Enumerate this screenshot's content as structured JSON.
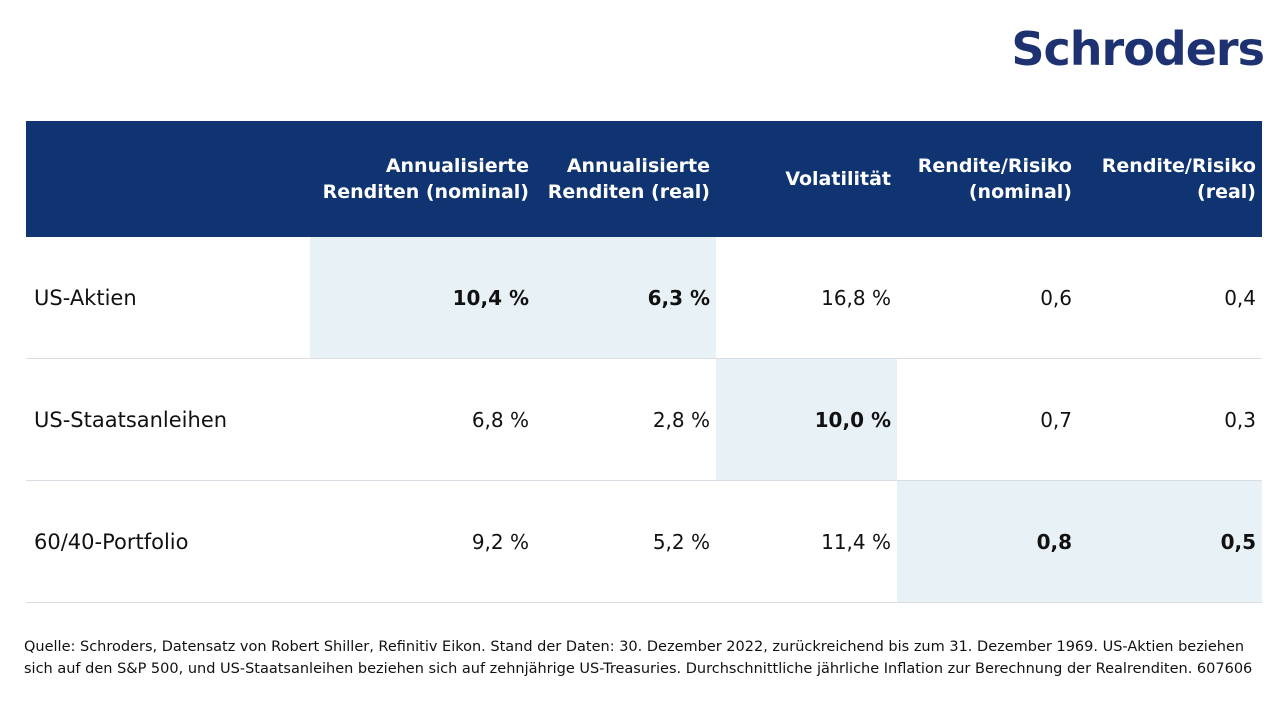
{
  "brand": {
    "logo_text": "Schroders",
    "color": "#1e3272"
  },
  "colors": {
    "header_bg": "#0f3471",
    "highlight_bg": "#e8f1f6",
    "divider": "#d9dde3"
  },
  "chart_data": {
    "type": "table",
    "columns": [
      "",
      "Annualisierte\nRenditen (nominal)",
      "Annualisierte\nRenditen (real)",
      "Volatilität",
      "Rendite/Risiko\n(nominal)",
      "Rendite/Risiko\n(real)"
    ],
    "rows": [
      {
        "label": "US-Aktien",
        "values": [
          "10,4 %",
          "6,3 %",
          "16,8 %",
          "0,6",
          "0,4"
        ],
        "highlighted": [
          true,
          true,
          false,
          false,
          false
        ]
      },
      {
        "label": "US-Staatsanleihen",
        "values": [
          "6,8 %",
          "2,8 %",
          "10,0 %",
          "0,7",
          "0,3"
        ],
        "highlighted": [
          false,
          false,
          true,
          false,
          false
        ]
      },
      {
        "label": "60/40-Portfolio",
        "values": [
          "9,2 %",
          "5,2 %",
          "11,4 %",
          "0,8",
          "0,5"
        ],
        "highlighted": [
          false,
          false,
          false,
          true,
          true
        ]
      }
    ]
  },
  "footnote": "Quelle: Schroders, Datensatz von Robert Shiller, Refinitiv Eikon. Stand der Daten: 30. Dezember 2022, zurückreichend bis zum 31. Dezember 1969. US-Aktien beziehen sich auf den S&P 500, und US-Staatsanleihen beziehen sich auf zehnjährige US-Treasuries. Durchschnittliche jährliche Inflation zur Berechnung der Realrenditen. 607606"
}
